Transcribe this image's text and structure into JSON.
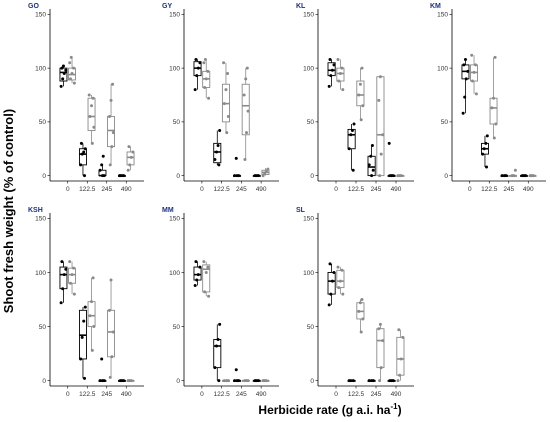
{
  "chart_data": {
    "type": "boxplot",
    "ylabel": "Shoot fresh weight (% of control)",
    "xlabel_main": "Herbicide rate (g a.i. ha",
    "xlabel_sup": "-1",
    "xlabel_close": ")",
    "categories": [
      "0",
      "122.5",
      "245",
      "490"
    ],
    "yticks": [
      0,
      50,
      100,
      150
    ],
    "ylim": [
      -5,
      155
    ],
    "series_colors": {
      "black": "#000000",
      "grey": "#8a8a8a"
    },
    "panels": [
      {
        "title": "GO",
        "boxes": [
          {
            "cat": 0,
            "color": "black",
            "q1": 88,
            "med": 96,
            "q3": 100,
            "lo": 83,
            "hi": 103,
            "points": [
              83,
              90,
              95,
              98,
              100,
              102
            ]
          },
          {
            "cat": 0,
            "color": "grey",
            "q1": 89,
            "med": 94,
            "q3": 100,
            "lo": 86,
            "hi": 110,
            "points": [
              86,
              90,
              95,
              100,
              105,
              110
            ]
          },
          {
            "cat": 1,
            "color": "black",
            "q1": 10,
            "med": 20,
            "q3": 25,
            "lo": 0,
            "hi": 30,
            "points": [
              0,
              10,
              20,
              22,
              25,
              30
            ]
          },
          {
            "cat": 1,
            "color": "grey",
            "q1": 42,
            "med": 55,
            "q3": 72,
            "lo": 30,
            "hi": 75,
            "points": [
              30,
              45,
              55,
              65,
              72,
              75
            ]
          },
          {
            "cat": 2,
            "color": "black",
            "q1": 0,
            "med": 0,
            "q3": 5,
            "lo": 0,
            "hi": 10,
            "points": [
              0,
              0,
              5,
              10,
              18
            ]
          },
          {
            "cat": 2,
            "color": "grey",
            "q1": 27,
            "med": 42,
            "q3": 55,
            "lo": 10,
            "hi": 85,
            "points": [
              10,
              27,
              40,
              55,
              70,
              85
            ]
          },
          {
            "cat": 3,
            "color": "black",
            "q1": 0,
            "med": 0,
            "q3": 0,
            "lo": 0,
            "hi": 0,
            "points": [
              0,
              0,
              0,
              0
            ]
          },
          {
            "cat": 3,
            "color": "grey",
            "q1": 10,
            "med": 17,
            "q3": 22,
            "lo": 5,
            "hi": 27,
            "points": [
              5,
              10,
              17,
              22,
              27
            ]
          }
        ]
      },
      {
        "title": "GY",
        "boxes": [
          {
            "cat": 0,
            "color": "black",
            "q1": 93,
            "med": 100,
            "q3": 106,
            "lo": 80,
            "hi": 108,
            "points": [
              80,
              93,
              100,
              105,
              108
            ]
          },
          {
            "cat": 0,
            "color": "grey",
            "q1": 82,
            "med": 90,
            "q3": 97,
            "lo": 72,
            "hi": 108,
            "points": [
              72,
              82,
              90,
              97,
              105,
              108
            ]
          },
          {
            "cat": 1,
            "color": "black",
            "q1": 12,
            "med": 22,
            "q3": 30,
            "lo": 10,
            "hi": 42,
            "points": [
              10,
              15,
              22,
              28,
              42
            ]
          },
          {
            "cat": 1,
            "color": "grey",
            "q1": 50,
            "med": 67,
            "q3": 85,
            "lo": 40,
            "hi": 105,
            "points": [
              40,
              55,
              67,
              80,
              95,
              105
            ]
          },
          {
            "cat": 2,
            "color": "black",
            "q1": 0,
            "med": 0,
            "q3": 0,
            "lo": 0,
            "hi": 0,
            "points": [
              0,
              0,
              0,
              16
            ]
          },
          {
            "cat": 2,
            "color": "grey",
            "q1": 38,
            "med": 65,
            "q3": 85,
            "lo": 15,
            "hi": 100,
            "points": [
              15,
              40,
              60,
              75,
              90,
              100
            ]
          },
          {
            "cat": 3,
            "color": "black",
            "q1": 0,
            "med": 0,
            "q3": 0,
            "lo": 0,
            "hi": 0,
            "points": [
              0,
              0,
              0
            ]
          },
          {
            "cat": 3,
            "color": "grey",
            "q1": 1,
            "med": 3,
            "q3": 5,
            "lo": 0,
            "hi": 7,
            "points": [
              0,
              2,
              4,
              6
            ]
          }
        ]
      },
      {
        "title": "KL",
        "boxes": [
          {
            "cat": 0,
            "color": "black",
            "q1": 93,
            "med": 98,
            "q3": 105,
            "lo": 83,
            "hi": 108,
            "points": [
              83,
              93,
              98,
              103,
              108
            ]
          },
          {
            "cat": 0,
            "color": "grey",
            "q1": 88,
            "med": 95,
            "q3": 100,
            "lo": 80,
            "hi": 108,
            "points": [
              80,
              88,
              95,
              100,
              108
            ]
          },
          {
            "cat": 1,
            "color": "black",
            "q1": 25,
            "med": 38,
            "q3": 43,
            "lo": 5,
            "hi": 48,
            "points": [
              5,
              25,
              38,
              42,
              48
            ]
          },
          {
            "cat": 1,
            "color": "grey",
            "q1": 65,
            "med": 75,
            "q3": 88,
            "lo": 52,
            "hi": 100,
            "points": [
              52,
              65,
              75,
              85,
              100
            ]
          },
          {
            "cat": 2,
            "color": "black",
            "q1": 0,
            "med": 8,
            "q3": 18,
            "lo": 0,
            "hi": 28,
            "points": [
              0,
              5,
              10,
              18,
              28
            ]
          },
          {
            "cat": 2,
            "color": "grey",
            "q1": 0,
            "med": 38,
            "q3": 92,
            "lo": 0,
            "hi": 92,
            "points": [
              0,
              20,
              38,
              70,
              92
            ]
          },
          {
            "cat": 3,
            "color": "black",
            "q1": 0,
            "med": 0,
            "q3": 0,
            "lo": 0,
            "hi": 0,
            "points": [
              0,
              0,
              0,
              30
            ]
          },
          {
            "cat": 3,
            "color": "grey",
            "q1": 0,
            "med": 0,
            "q3": 0,
            "lo": 0,
            "hi": 0,
            "points": [
              0,
              0,
              0
            ]
          }
        ]
      },
      {
        "title": "KM",
        "boxes": [
          {
            "cat": 0,
            "color": "black",
            "q1": 90,
            "med": 97,
            "q3": 103,
            "lo": 58,
            "hi": 108,
            "points": [
              58,
              73,
              90,
              97,
              103,
              108
            ]
          },
          {
            "cat": 0,
            "color": "grey",
            "q1": 88,
            "med": 96,
            "q3": 103,
            "lo": 76,
            "hi": 112,
            "points": [
              76,
              88,
              96,
              103,
              112
            ]
          },
          {
            "cat": 1,
            "color": "black",
            "q1": 20,
            "med": 25,
            "q3": 30,
            "lo": 8,
            "hi": 37,
            "points": [
              8,
              20,
              25,
              30,
              37
            ]
          },
          {
            "cat": 1,
            "color": "grey",
            "q1": 48,
            "med": 63,
            "q3": 72,
            "lo": 35,
            "hi": 110,
            "points": [
              35,
              48,
              63,
              72,
              110
            ]
          },
          {
            "cat": 2,
            "color": "black",
            "q1": 0,
            "med": 0,
            "q3": 0,
            "lo": 0,
            "hi": 0,
            "points": [
              0,
              0,
              0
            ]
          },
          {
            "cat": 2,
            "color": "grey",
            "q1": 0,
            "med": 0,
            "q3": 0,
            "lo": 0,
            "hi": 0,
            "points": [
              0,
              0,
              5
            ]
          },
          {
            "cat": 3,
            "color": "black",
            "q1": 0,
            "med": 0,
            "q3": 0,
            "lo": 0,
            "hi": 0,
            "points": [
              0,
              0,
              0
            ]
          },
          {
            "cat": 3,
            "color": "grey",
            "q1": 0,
            "med": 0,
            "q3": 0,
            "lo": 0,
            "hi": 0,
            "points": [
              0,
              0,
              0
            ]
          }
        ]
      },
      {
        "title": "KSH",
        "boxes": [
          {
            "cat": 0,
            "color": "black",
            "q1": 85,
            "med": 98,
            "q3": 105,
            "lo": 72,
            "hi": 110,
            "points": [
              72,
              85,
              98,
              103,
              110
            ]
          },
          {
            "cat": 0,
            "color": "grey",
            "q1": 90,
            "med": 98,
            "q3": 104,
            "lo": 80,
            "hi": 110,
            "points": [
              80,
              90,
              98,
              104,
              110
            ]
          },
          {
            "cat": 1,
            "color": "black",
            "q1": 20,
            "med": 42,
            "q3": 65,
            "lo": 2,
            "hi": 68,
            "points": [
              2,
              20,
              40,
              55,
              68
            ]
          },
          {
            "cat": 1,
            "color": "grey",
            "q1": 50,
            "med": 60,
            "q3": 73,
            "lo": 28,
            "hi": 95,
            "points": [
              28,
              50,
              60,
              73,
              95
            ]
          },
          {
            "cat": 2,
            "color": "black",
            "q1": 0,
            "med": 0,
            "q3": 0,
            "lo": 0,
            "hi": 0,
            "points": [
              0,
              0,
              0,
              20
            ]
          },
          {
            "cat": 2,
            "color": "grey",
            "q1": 22,
            "med": 45,
            "q3": 65,
            "lo": 3,
            "hi": 93,
            "points": [
              3,
              22,
              45,
              65,
              93
            ]
          },
          {
            "cat": 3,
            "color": "black",
            "q1": 0,
            "med": 0,
            "q3": 0,
            "lo": 0,
            "hi": 0,
            "points": [
              0,
              0,
              0
            ]
          },
          {
            "cat": 3,
            "color": "grey",
            "q1": 0,
            "med": 0,
            "q3": 0,
            "lo": 0,
            "hi": 0,
            "points": [
              0,
              0,
              0
            ]
          }
        ]
      },
      {
        "title": "MM",
        "boxes": [
          {
            "cat": 0,
            "color": "black",
            "q1": 93,
            "med": 98,
            "q3": 105,
            "lo": 88,
            "hi": 110,
            "points": [
              88,
              93,
              98,
              105,
              110
            ]
          },
          {
            "cat": 0,
            "color": "grey",
            "q1": 82,
            "med": 103,
            "q3": 107,
            "lo": 78,
            "hi": 110,
            "points": [
              78,
              82,
              100,
              105,
              110
            ]
          },
          {
            "cat": 1,
            "color": "black",
            "q1": 12,
            "med": 32,
            "q3": 38,
            "lo": 0,
            "hi": 52,
            "points": [
              0,
              12,
              32,
              38,
              52
            ]
          },
          {
            "cat": 1,
            "color": "grey",
            "q1": 0,
            "med": 0,
            "q3": 0,
            "lo": 0,
            "hi": 0,
            "points": [
              0,
              0,
              0
            ]
          },
          {
            "cat": 2,
            "color": "black",
            "q1": 0,
            "med": 0,
            "q3": 0,
            "lo": 0,
            "hi": 0,
            "points": [
              0,
              0,
              0,
              10
            ]
          },
          {
            "cat": 2,
            "color": "grey",
            "q1": 0,
            "med": 0,
            "q3": 0,
            "lo": 0,
            "hi": 0,
            "points": [
              0,
              0,
              0
            ]
          },
          {
            "cat": 3,
            "color": "black",
            "q1": 0,
            "med": 0,
            "q3": 0,
            "lo": 0,
            "hi": 0,
            "points": [
              0,
              0,
              0
            ]
          },
          {
            "cat": 3,
            "color": "grey",
            "q1": 0,
            "med": 0,
            "q3": 0,
            "lo": 0,
            "hi": 0,
            "points": [
              0,
              0,
              0
            ]
          }
        ]
      },
      {
        "title": "SL",
        "boxes": [
          {
            "cat": 0,
            "color": "black",
            "q1": 80,
            "med": 92,
            "q3": 100,
            "lo": 70,
            "hi": 108,
            "points": [
              70,
              80,
              92,
              100,
              108
            ]
          },
          {
            "cat": 0,
            "color": "grey",
            "q1": 86,
            "med": 92,
            "q3": 102,
            "lo": 80,
            "hi": 105,
            "points": [
              80,
              86,
              92,
              102,
              105
            ]
          },
          {
            "cat": 1,
            "color": "black",
            "q1": 0,
            "med": 0,
            "q3": 0,
            "lo": 0,
            "hi": 0,
            "points": [
              0,
              0,
              0
            ]
          },
          {
            "cat": 1,
            "color": "grey",
            "q1": 57,
            "med": 64,
            "q3": 72,
            "lo": 45,
            "hi": 75,
            "points": [
              45,
              57,
              64,
              72,
              75
            ]
          },
          {
            "cat": 2,
            "color": "black",
            "q1": 0,
            "med": 0,
            "q3": 0,
            "lo": 0,
            "hi": 0,
            "points": [
              0,
              0,
              0
            ]
          },
          {
            "cat": 2,
            "color": "grey",
            "q1": 12,
            "med": 37,
            "q3": 48,
            "lo": 0,
            "hi": 52,
            "points": [
              0,
              12,
              37,
              48,
              52
            ]
          },
          {
            "cat": 3,
            "color": "black",
            "q1": 0,
            "med": 0,
            "q3": 0,
            "lo": 0,
            "hi": 0,
            "points": [
              0,
              0,
              0
            ]
          },
          {
            "cat": 3,
            "color": "grey",
            "q1": 5,
            "med": 20,
            "q3": 40,
            "lo": 0,
            "hi": 47,
            "points": [
              0,
              5,
              20,
              40,
              47
            ]
          }
        ]
      }
    ]
  }
}
